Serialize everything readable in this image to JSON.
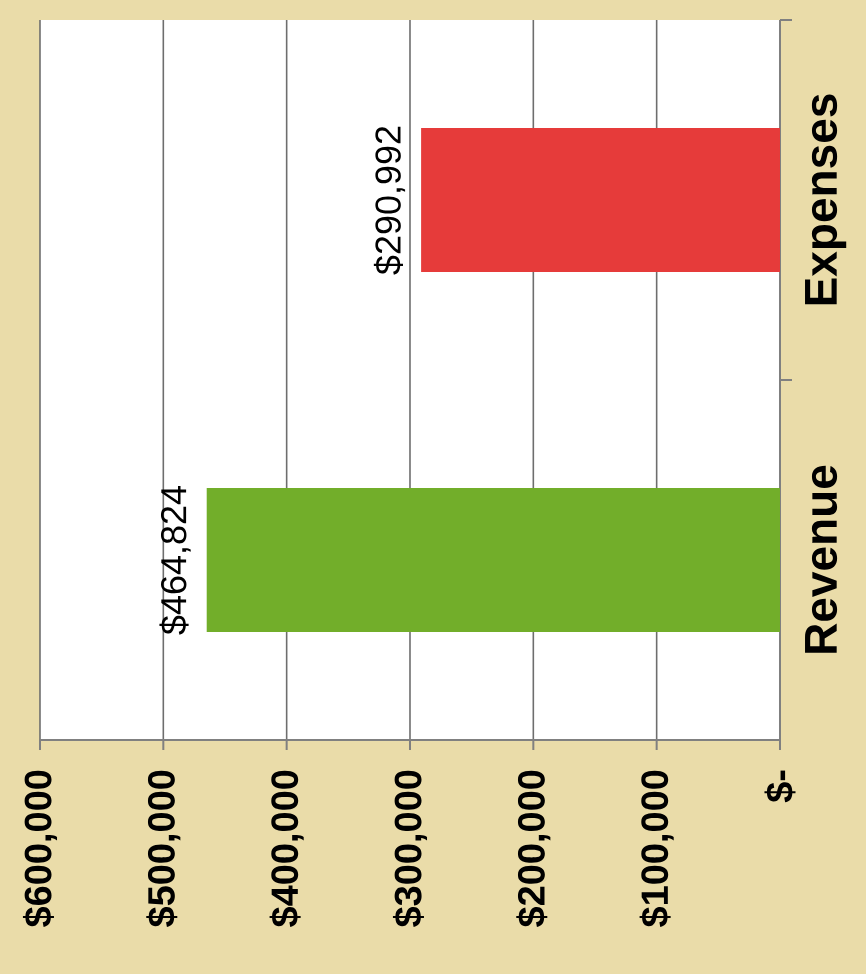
{
  "chart_data": {
    "type": "bar",
    "orientation": "horizontal",
    "categories": [
      "Expenses",
      "Revenue"
    ],
    "values": [
      290992,
      464824
    ],
    "colors": [
      "#e63b3a",
      "#72ae2a"
    ],
    "value_labels": [
      "$290,992",
      "$464,824"
    ],
    "xlim": [
      600000,
      0
    ],
    "xticks": [
      {
        "value": 600000,
        "label": "$600,000"
      },
      {
        "value": 500000,
        "label": "$500,000"
      },
      {
        "value": 400000,
        "label": "$400,000"
      },
      {
        "value": 300000,
        "label": "$300,000"
      },
      {
        "value": 200000,
        "label": "$200,000"
      },
      {
        "value": 100000,
        "label": "$100,000"
      },
      {
        "value": 0,
        "label": "$-"
      }
    ],
    "grid": "x"
  }
}
